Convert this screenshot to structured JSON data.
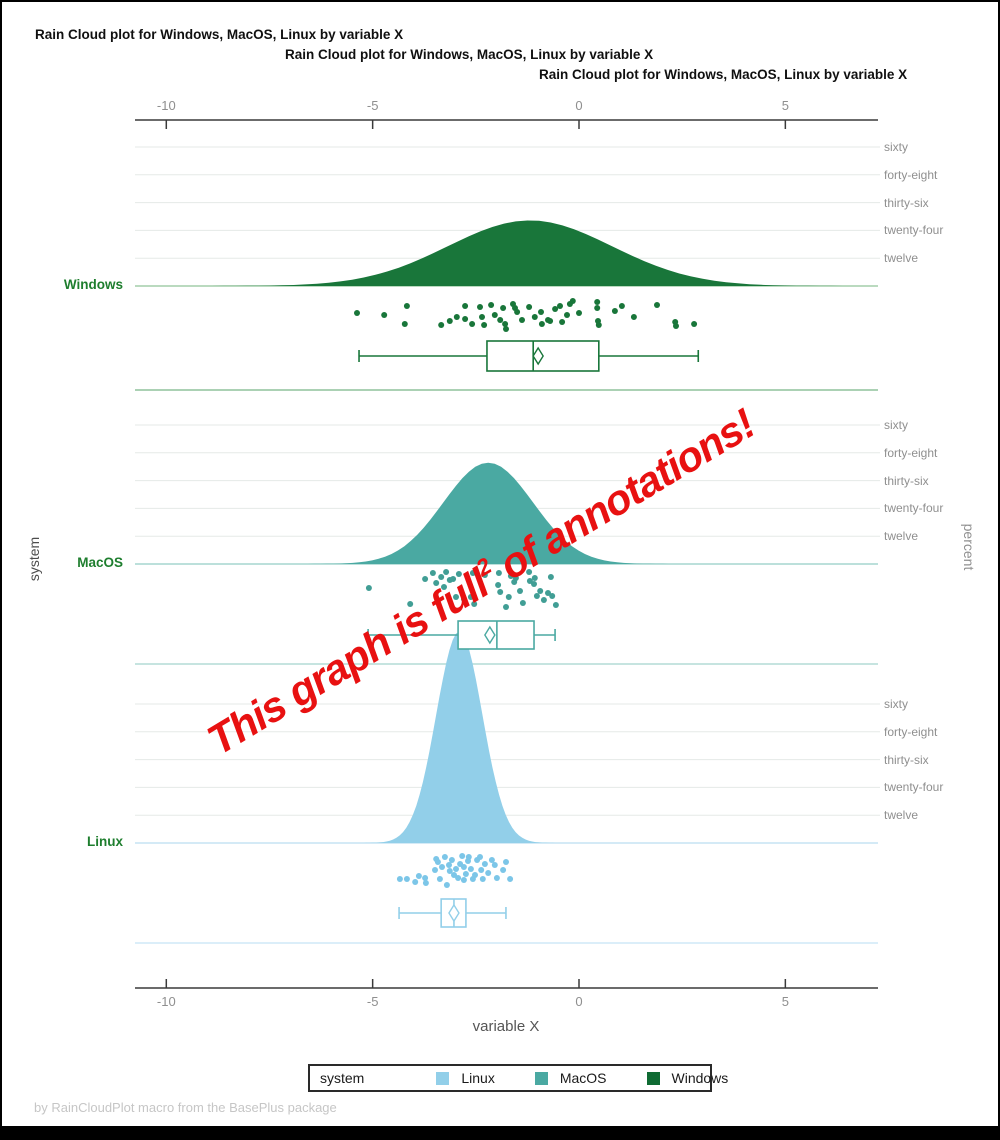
{
  "window": {
    "background": "#ffffff",
    "border_color": "#000000",
    "bottom_bar_color": "#000000"
  },
  "titles": [
    "Rain Cloud plot for Windows, MacOS, Linux by variable X",
    "Rain Cloud plot for Windows, MacOS, Linux by variable X",
    "Rain Cloud plot for Windows, MacOS, Linux by variable X"
  ],
  "footnote": "by RainCloudPlot macro from the BasePlus package",
  "annotation": {
    "text_before": "This graph is full",
    "superscript": "2",
    "text_after": " of annotations!",
    "color": "#e81111"
  },
  "chart_data": {
    "type": "raincloud",
    "title": "Rain Cloud plot for Windows, MacOS, Linux by variable X",
    "xlabel": "variable X",
    "ylabel": "system",
    "y2label": "percent",
    "x_ticks": [
      -10,
      -5,
      0,
      5
    ],
    "x_range": [
      -10.8,
      7.2
    ],
    "grid": true,
    "percent_ticks": {
      "labels": [
        "sixty",
        "forty-eight",
        "thirty-six",
        "twenty-four",
        "twelve"
      ],
      "values": [
        60,
        48,
        36,
        24,
        12
      ]
    },
    "legend": {
      "position": "bottom",
      "title": "system",
      "entries": [
        {
          "label": "Linux",
          "color": "#92cfe9"
        },
        {
          "label": "MacOS",
          "color": "#4aa9a2"
        },
        {
          "label": "Windows",
          "color": "#0f6b33"
        }
      ]
    },
    "series": [
      {
        "name": "Windows",
        "color": "#19763a",
        "point_color": "#19763a",
        "baseline_color": "#a3cdaa",
        "divider_color": "#8fc29b",
        "density": {
          "center": -1.19,
          "sd": 1.99,
          "peak_percent": 28.3
        },
        "boxplot": {
          "min": -5.33,
          "q1": -2.23,
          "median": -1.11,
          "q3": 0.48,
          "max": 2.89,
          "mean": -0.99
        },
        "points": [
          [
            -5.38,
            -1
          ],
          [
            -4.72,
            1
          ],
          [
            -4.17,
            -8
          ],
          [
            -4.22,
            10
          ],
          [
            -3.34,
            11
          ],
          [
            -3.13,
            7
          ],
          [
            -2.96,
            3
          ],
          [
            -2.76,
            -8
          ],
          [
            -2.76,
            5
          ],
          [
            -2.59,
            10
          ],
          [
            -2.4,
            -7
          ],
          [
            -2.35,
            3
          ],
          [
            -2.3,
            11
          ],
          [
            -2.13,
            -9
          ],
          [
            -2.04,
            1
          ],
          [
            -1.91,
            6
          ],
          [
            -1.84,
            -6
          ],
          [
            -1.79,
            10
          ],
          [
            -1.77,
            15
          ],
          [
            -1.6,
            -10
          ],
          [
            -1.55,
            -6
          ],
          [
            -1.5,
            -2
          ],
          [
            -1.38,
            6
          ],
          [
            -1.21,
            -7
          ],
          [
            -1.07,
            3
          ],
          [
            -0.92,
            -2
          ],
          [
            -0.9,
            10
          ],
          [
            -0.75,
            6
          ],
          [
            -0.7,
            7
          ],
          [
            -0.58,
            -5
          ],
          [
            -0.46,
            -8
          ],
          [
            -0.41,
            8
          ],
          [
            -0.29,
            1
          ],
          [
            -0.22,
            -10
          ],
          [
            -0.15,
            -13
          ],
          [
            0.0,
            -1
          ],
          [
            0.44,
            -12
          ],
          [
            0.44,
            -6
          ],
          [
            0.46,
            7
          ],
          [
            0.48,
            11
          ],
          [
            0.87,
            -3
          ],
          [
            1.04,
            -8
          ],
          [
            1.33,
            3
          ],
          [
            1.89,
            -9
          ],
          [
            2.33,
            8
          ],
          [
            2.35,
            12
          ],
          [
            2.79,
            10
          ]
        ]
      },
      {
        "name": "MacOS",
        "color": "#4aa9a2",
        "point_color": "#419e95",
        "baseline_color": "#a6d6cf",
        "divider_color": "#b4dcd6",
        "density": {
          "center": -2.2,
          "sd": 1.09,
          "peak_percent": 43.7
        },
        "boxplot": {
          "min": -5.11,
          "q1": -2.93,
          "median": -1.99,
          "q3": -1.09,
          "max": -0.58,
          "mean": -2.16
        },
        "points": [
          [
            -5.09,
            -2
          ],
          [
            -4.09,
            14
          ],
          [
            -3.73,
            -11
          ],
          [
            -3.46,
            -7
          ],
          [
            -3.34,
            -13
          ],
          [
            -3.27,
            -3
          ],
          [
            -3.13,
            -10
          ],
          [
            -3.05,
            -11
          ],
          [
            -2.98,
            7
          ],
          [
            -2.79,
            9
          ],
          [
            -2.62,
            7
          ],
          [
            -2.54,
            14
          ],
          [
            -1.96,
            -5
          ],
          [
            -1.91,
            2
          ],
          [
            -1.77,
            17
          ],
          [
            -1.7,
            7
          ],
          [
            -1.57,
            -8
          ],
          [
            -1.53,
            -12
          ],
          [
            -1.43,
            1
          ],
          [
            -1.36,
            13
          ],
          [
            -1.19,
            -9
          ],
          [
            -1.09,
            -6
          ],
          [
            -1.02,
            6
          ],
          [
            -0.94,
            1
          ],
          [
            -0.85,
            10
          ],
          [
            -0.75,
            3
          ],
          [
            -0.65,
            6
          ],
          [
            -0.56,
            15
          ],
          [
            -3.54,
            -17
          ],
          [
            -3.22,
            -18
          ],
          [
            -2.91,
            -16
          ],
          [
            -2.57,
            -17
          ],
          [
            -2.28,
            -15
          ],
          [
            -1.94,
            -17
          ],
          [
            -1.65,
            -14
          ],
          [
            -1.07,
            -12
          ],
          [
            -0.68,
            -13
          ],
          [
            -1.21,
            -18
          ]
        ]
      },
      {
        "name": "Linux",
        "color": "#92cfe9",
        "point_color": "#7cc6e8",
        "baseline_color": "#c6e4f4",
        "divider_color": "#cfe9f7",
        "density": {
          "center": -2.9,
          "sd": 0.56,
          "peak_percent": 91.3
        },
        "boxplot": {
          "min": -4.36,
          "q1": -3.34,
          "median": -3.03,
          "q3": -2.74,
          "max": -1.77,
          "mean": -3.03
        },
        "points": [
          [
            -4.34,
            7
          ],
          [
            -4.17,
            7
          ],
          [
            -3.97,
            10
          ],
          [
            -3.88,
            4
          ],
          [
            -3.73,
            6
          ],
          [
            -3.71,
            11
          ],
          [
            -3.49,
            -2
          ],
          [
            -3.46,
            -13
          ],
          [
            -3.42,
            -10
          ],
          [
            -3.37,
            7
          ],
          [
            -3.32,
            -5
          ],
          [
            -3.25,
            -15
          ],
          [
            -3.2,
            13
          ],
          [
            -3.15,
            -7
          ],
          [
            -3.13,
            -1
          ],
          [
            -3.08,
            -12
          ],
          [
            -3.03,
            3
          ],
          [
            -2.98,
            -3
          ],
          [
            -2.93,
            6
          ],
          [
            -2.88,
            -8
          ],
          [
            -2.83,
            -16
          ],
          [
            -2.79,
            -5
          ],
          [
            -2.79,
            8
          ],
          [
            -2.74,
            2
          ],
          [
            -2.69,
            -11
          ],
          [
            -2.67,
            -15
          ],
          [
            -2.62,
            -3
          ],
          [
            -2.57,
            7
          ],
          [
            -2.52,
            3
          ],
          [
            -2.47,
            -12
          ],
          [
            -2.4,
            -15
          ],
          [
            -2.37,
            -2
          ],
          [
            -2.33,
            7
          ],
          [
            -2.28,
            -8
          ],
          [
            -2.2,
            1
          ],
          [
            -2.11,
            -12
          ],
          [
            -2.04,
            -7
          ],
          [
            -1.99,
            6
          ],
          [
            -1.84,
            -2
          ],
          [
            -1.77,
            -10
          ],
          [
            -1.67,
            7
          ]
        ]
      }
    ]
  }
}
